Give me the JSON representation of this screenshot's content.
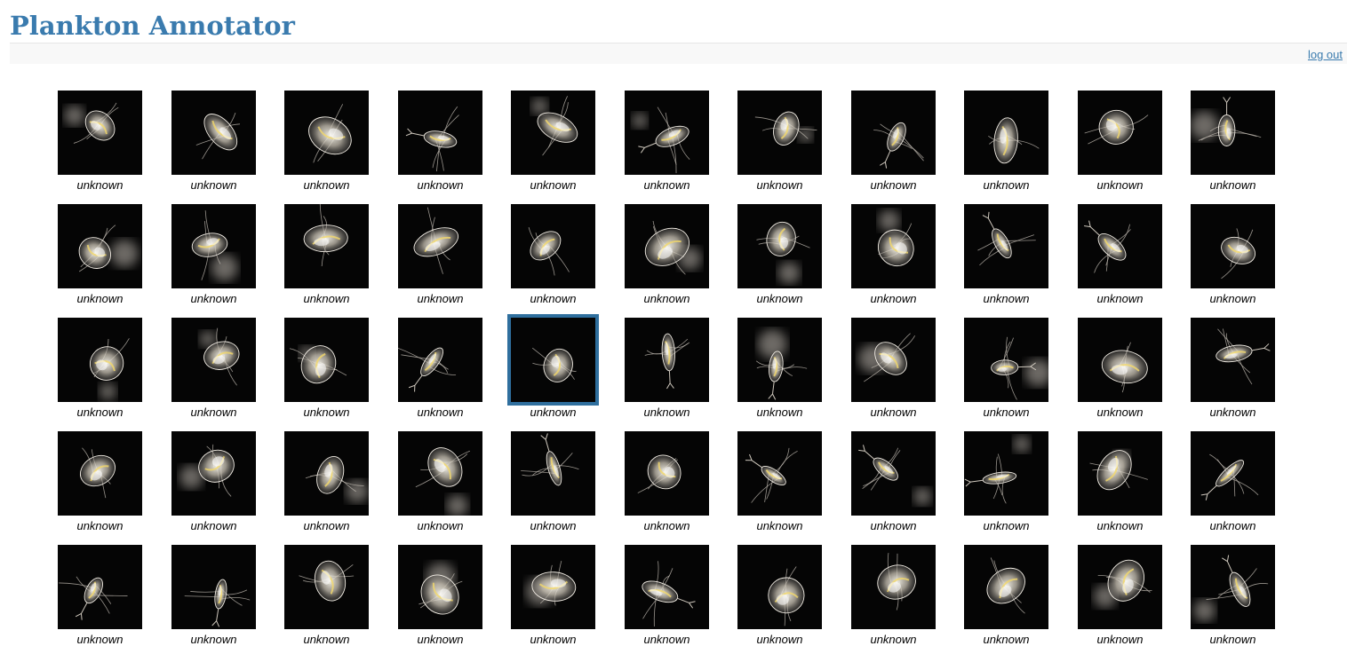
{
  "app": {
    "title": "Plankton Annotator",
    "logout_label": "log out"
  },
  "colors": {
    "title": "#3a7bae",
    "link": "#3a7bae",
    "selection_border": "#2f6f9e",
    "thumb_background": "#050505",
    "organism_highlight": "#f2d86a"
  },
  "grid": {
    "columns": 11,
    "rows": 5,
    "selected_index": 26,
    "tiles": [
      {
        "label": "unknown",
        "icon": "daphnia-image"
      },
      {
        "label": "unknown",
        "icon": "daphnia-image"
      },
      {
        "label": "unknown",
        "icon": "daphnia-image"
      },
      {
        "label": "unknown",
        "icon": "copepod-image"
      },
      {
        "label": "unknown",
        "icon": "daphnia-image"
      },
      {
        "label": "unknown",
        "icon": "copepod-image"
      },
      {
        "label": "unknown",
        "icon": "daphnia-image"
      },
      {
        "label": "unknown",
        "icon": "copepod-image"
      },
      {
        "label": "unknown",
        "icon": "daphnia-image"
      },
      {
        "label": "unknown",
        "icon": "daphnia-image"
      },
      {
        "label": "unknown",
        "icon": "copepod-image"
      },
      {
        "label": "unknown",
        "icon": "daphnia-image"
      },
      {
        "label": "unknown",
        "icon": "daphnia-image"
      },
      {
        "label": "unknown",
        "icon": "daphnia-image"
      },
      {
        "label": "unknown",
        "icon": "daphnia-image"
      },
      {
        "label": "unknown",
        "icon": "daphnia-image"
      },
      {
        "label": "unknown",
        "icon": "daphnia-image"
      },
      {
        "label": "unknown",
        "icon": "daphnia-image"
      },
      {
        "label": "unknown",
        "icon": "daphnia-image"
      },
      {
        "label": "unknown",
        "icon": "copepod-image"
      },
      {
        "label": "unknown",
        "icon": "copepod-image"
      },
      {
        "label": "unknown",
        "icon": "daphnia-image"
      },
      {
        "label": "unknown",
        "icon": "daphnia-image"
      },
      {
        "label": "unknown",
        "icon": "daphnia-image"
      },
      {
        "label": "unknown",
        "icon": "daphnia-image"
      },
      {
        "label": "unknown",
        "icon": "copepod-image"
      },
      {
        "label": "unknown",
        "icon": "daphnia-image"
      },
      {
        "label": "unknown",
        "icon": "copepod-image"
      },
      {
        "label": "unknown",
        "icon": "copepod-image"
      },
      {
        "label": "unknown",
        "icon": "daphnia-image"
      },
      {
        "label": "unknown",
        "icon": "copepod-image"
      },
      {
        "label": "unknown",
        "icon": "daphnia-image"
      },
      {
        "label": "unknown",
        "icon": "copepod-image"
      },
      {
        "label": "unknown",
        "icon": "daphnia-image"
      },
      {
        "label": "unknown",
        "icon": "daphnia-image"
      },
      {
        "label": "unknown",
        "icon": "daphnia-image"
      },
      {
        "label": "unknown",
        "icon": "daphnia-image"
      },
      {
        "label": "unknown",
        "icon": "copepod-image"
      },
      {
        "label": "unknown",
        "icon": "daphnia-image"
      },
      {
        "label": "unknown",
        "icon": "copepod-image"
      },
      {
        "label": "unknown",
        "icon": "copepod-image"
      },
      {
        "label": "unknown",
        "icon": "copepod-image"
      },
      {
        "label": "unknown",
        "icon": "daphnia-image"
      },
      {
        "label": "unknown",
        "icon": "copepod-image"
      },
      {
        "label": "unknown",
        "icon": "copepod-image"
      },
      {
        "label": "unknown",
        "icon": "copepod-image"
      },
      {
        "label": "unknown",
        "icon": "daphnia-image"
      },
      {
        "label": "unknown",
        "icon": "daphnia-image"
      },
      {
        "label": "unknown",
        "icon": "daphnia-image"
      },
      {
        "label": "unknown",
        "icon": "copepod-image"
      },
      {
        "label": "unknown",
        "icon": "daphnia-image"
      },
      {
        "label": "unknown",
        "icon": "daphnia-image"
      },
      {
        "label": "unknown",
        "icon": "daphnia-image"
      },
      {
        "label": "unknown",
        "icon": "daphnia-image"
      },
      {
        "label": "unknown",
        "icon": "copepod-image"
      }
    ]
  }
}
